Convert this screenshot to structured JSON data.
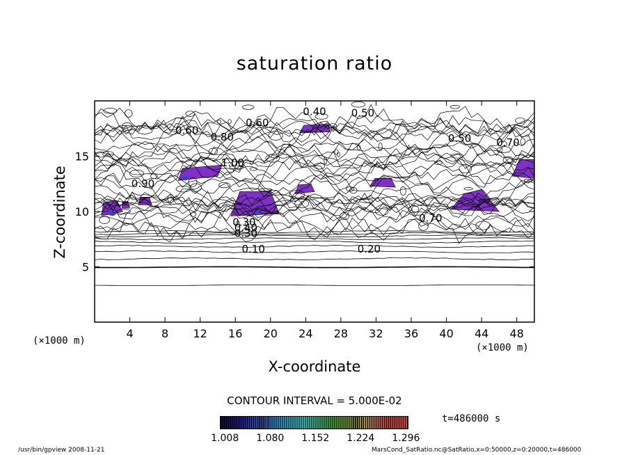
{
  "chart_data": {
    "type": "contour",
    "title": "saturation ratio",
    "xlabel": "X-coordinate",
    "ylabel": "Z-coordinate",
    "x_unit_label": "(×1000 m)",
    "xlim": [
      0,
      50
    ],
    "ylim": [
      0,
      20
    ],
    "x_ticks": [
      4,
      8,
      12,
      16,
      20,
      24,
      28,
      32,
      36,
      40,
      44,
      48
    ],
    "y_ticks": [
      5,
      10,
      15
    ],
    "contour_interval_text": "CONTOUR INTERVAL = 5.000E-02",
    "contour_labels": [
      "0.10",
      "0.20",
      "0.30",
      "0.40",
      "0.50",
      "0.60",
      "0.70",
      "0.80",
      "0.90",
      "1.00"
    ],
    "colorbar_ticks": [
      "1.008",
      "1.080",
      "1.152",
      "1.224",
      "1.296"
    ],
    "colorbar_range": [
      1.0,
      1.3
    ],
    "time_label": "t=486000 s",
    "footer_left": "/usr/bin/gpview   2008-11-21",
    "footer_right": "MarsCond_SatRatio.nc@SatRatio,x=0:50000,z=0:20000,t=486000",
    "colors": {
      "shade_main": "#8030c8",
      "shade_high": "#3344cc",
      "line": "#000000"
    }
  }
}
